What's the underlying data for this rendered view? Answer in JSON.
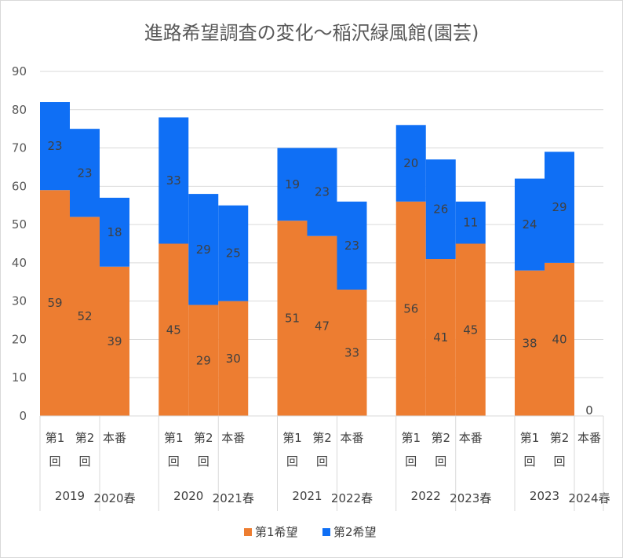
{
  "chart_data": {
    "type": "bar",
    "stacked": true,
    "title": "進路希望調査の変化～稲沢緑風館(園芸)",
    "ylim": [
      0,
      90
    ],
    "yticks": [
      0,
      10,
      20,
      30,
      40,
      50,
      60,
      70,
      80,
      90
    ],
    "grid": true,
    "legend_position": "bottom",
    "colors": {
      "first": "#ED7D31",
      "second": "#0F6FF5"
    },
    "groups": [
      {
        "year": "2019",
        "spring": "2020春",
        "bars": [
          {
            "label": [
              "第1",
              "回"
            ],
            "first": 59,
            "second": 23
          },
          {
            "label": [
              "第2",
              "回"
            ],
            "first": 52,
            "second": 23
          },
          {
            "label": [
              "本番"
            ],
            "first": 39,
            "second": 18
          }
        ]
      },
      {
        "year": "2020",
        "spring": "2021春",
        "bars": [
          {
            "label": [
              "第1",
              "回"
            ],
            "first": 45,
            "second": 33
          },
          {
            "label": [
              "第2",
              "回"
            ],
            "first": 29,
            "second": 29
          },
          {
            "label": [
              "本番"
            ],
            "first": 30,
            "second": 25
          }
        ]
      },
      {
        "year": "2021",
        "spring": "2022春",
        "bars": [
          {
            "label": [
              "第1",
              "回"
            ],
            "first": 51,
            "second": 19
          },
          {
            "label": [
              "第2",
              "回"
            ],
            "first": 47,
            "second": 23
          },
          {
            "label": [
              "本番"
            ],
            "first": 33,
            "second": 23
          }
        ]
      },
      {
        "year": "2022",
        "spring": "2023春",
        "bars": [
          {
            "label": [
              "第1",
              "回"
            ],
            "first": 56,
            "second": 20
          },
          {
            "label": [
              "第2",
              "回"
            ],
            "first": 41,
            "second": 26
          },
          {
            "label": [
              "本番"
            ],
            "first": 45,
            "second": 11
          }
        ]
      },
      {
        "year": "2023",
        "spring": "2024春",
        "bars": [
          {
            "label": [
              "第1",
              "回"
            ],
            "first": 38,
            "second": 24
          },
          {
            "label": [
              "第2",
              "回"
            ],
            "first": 40,
            "second": 29
          },
          {
            "label": [
              "本番"
            ],
            "first": 0,
            "second": null
          }
        ]
      }
    ],
    "series": [
      {
        "name": "第1希望",
        "key": "first"
      },
      {
        "name": "第2希望",
        "key": "second"
      }
    ]
  }
}
